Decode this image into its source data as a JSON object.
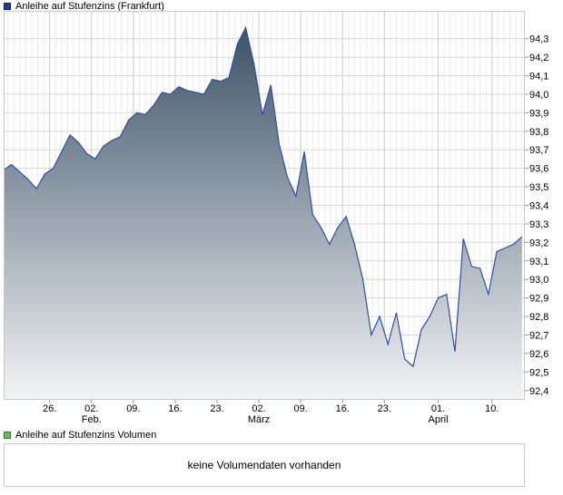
{
  "legend": {
    "price_label": "Anleihe auf Stufenzins (Frankfurt)",
    "volume_label": "Anleihe auf Stufenzins Volumen"
  },
  "volume": {
    "message": "keine Volumendaten vorhanden"
  },
  "colors": {
    "line": "#2a4fa8",
    "fill_top": "#3d5266",
    "fill_bottom": "#f3f4f6",
    "grid": "#d8d8d8",
    "frame": "#c8c8c8"
  },
  "chart_data": {
    "type": "area",
    "ylim": [
      92.35,
      94.45
    ],
    "y_ticks": [
      "92,4",
      "92,5",
      "92,6",
      "92,7",
      "92,8",
      "92,9",
      "93,0",
      "93,1",
      "93,2",
      "93,3",
      "93,4",
      "93,5",
      "93,6",
      "93,7",
      "93,8",
      "93,9",
      "94,0",
      "94,1",
      "94,2",
      "94,3"
    ],
    "x_ticks": [
      {
        "label": "26.",
        "day": 26
      },
      {
        "label": "02.",
        "day": 33,
        "month": "Feb."
      },
      {
        "label": "09.",
        "day": 40
      },
      {
        "label": "16.",
        "day": 47
      },
      {
        "label": "23.",
        "day": 54
      },
      {
        "label": "02.",
        "day": 61,
        "month": "März"
      },
      {
        "label": "09.",
        "day": 68
      },
      {
        "label": "16.",
        "day": 75
      },
      {
        "label": "23.",
        "day": 82
      },
      {
        "label": "01.",
        "day": 91,
        "month": "April"
      },
      {
        "label": "10.",
        "day": 100
      }
    ],
    "x_range": [
      18.3,
      105.5
    ],
    "series": [
      {
        "x": [
          18.3,
          19.6,
          21.0,
          22.4,
          23.8,
          25.2,
          26.6,
          28.0,
          29.4,
          30.8,
          32.2,
          33.6,
          35.0,
          36.4,
          37.8,
          39.2,
          40.6,
          42.0,
          43.4,
          44.8,
          46.2,
          47.6,
          49.0,
          50.4,
          51.8,
          53.2,
          54.6,
          56.0,
          57.4,
          58.8,
          60.2,
          61.6,
          63.0,
          64.4,
          65.8,
          67.2,
          68.6,
          70.0,
          71.4,
          72.8,
          74.2,
          75.6,
          77.0,
          78.4,
          79.8,
          81.2,
          82.6,
          84.0,
          85.4,
          86.8,
          88.2,
          89.6,
          91.0,
          92.4,
          93.8,
          95.2,
          96.6,
          98.0,
          99.4,
          100.8,
          102.2,
          103.6,
          105.0
        ],
        "y": [
          93.59,
          93.62,
          93.58,
          93.54,
          93.49,
          93.57,
          93.6,
          93.69,
          93.78,
          93.74,
          93.68,
          93.65,
          93.72,
          93.75,
          93.77,
          93.86,
          93.9,
          93.89,
          93.94,
          94.01,
          94.0,
          94.04,
          94.02,
          94.01,
          94.0,
          94.08,
          94.07,
          94.09,
          94.27,
          94.36,
          94.16,
          93.89,
          94.05,
          93.73,
          93.55,
          93.45,
          93.69,
          93.35,
          93.28,
          93.19,
          93.28,
          93.34,
          93.19,
          93.0,
          92.7,
          92.8,
          92.65,
          92.82,
          92.57,
          92.53,
          92.73,
          92.8,
          92.9,
          92.92,
          92.61,
          93.22,
          93.07,
          93.06,
          92.92,
          93.15,
          93.17,
          93.19,
          93.23
        ]
      }
    ]
  }
}
